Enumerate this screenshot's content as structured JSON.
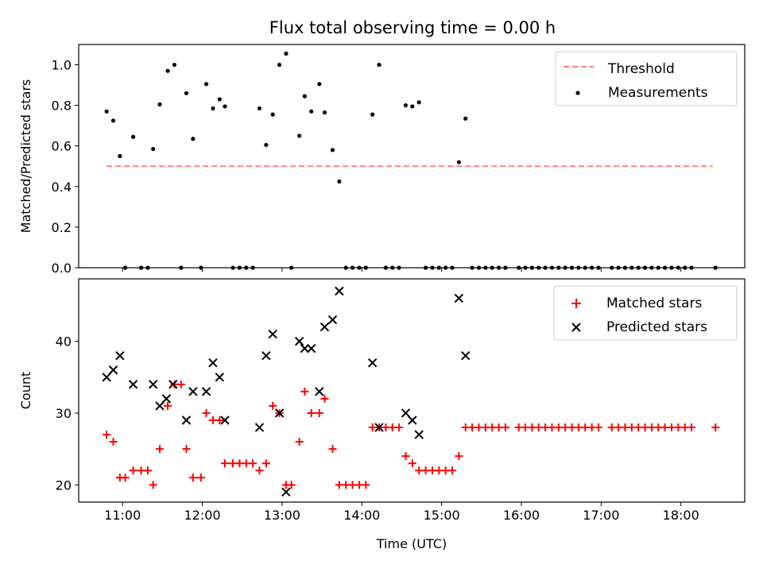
{
  "chart_data": [
    {
      "type": "scatter",
      "title": "Flux total observing time = 0.00 h",
      "xlabel": "",
      "ylabel": "Matched/Predicted stars",
      "xlim": [
        "10:27",
        "18:48"
      ],
      "ylim": [
        0,
        1.1
      ],
      "yticks": [
        0.0,
        0.2,
        0.4,
        0.6,
        0.8,
        1.0
      ],
      "ytick_labels": [
        "0.0",
        "0.2",
        "0.4",
        "0.6",
        "0.8",
        "1.0"
      ],
      "x_tick_labels_visible": false,
      "grid": false,
      "legend": "top-right",
      "series": [
        {
          "name": "Threshold",
          "kind": "dashed-line",
          "color": "#ff7f7f",
          "x": [
            "10:48",
            "18:24"
          ],
          "y": [
            0.5,
            0.5
          ]
        },
        {
          "name": "Measurements",
          "kind": "points",
          "color": "#000000",
          "x": [
            "10:48",
            "10:53",
            "10:58",
            "11:02",
            "11:08",
            "11:14",
            "11:19",
            "11:23",
            "11:28",
            "11:34",
            "11:39",
            "11:44",
            "11:48",
            "11:53",
            "11:59",
            "12:03",
            "12:08",
            "12:13",
            "12:17",
            "12:23",
            "12:28",
            "12:33",
            "12:38",
            "12:43",
            "12:48",
            "12:53",
            "12:58",
            "13:03",
            "13:07",
            "13:13",
            "13:17",
            "13:22",
            "13:28",
            "13:32",
            "13:38",
            "13:43",
            "13:48",
            "13:53",
            "13:58",
            "14:03",
            "14:08",
            "14:13",
            "14:18",
            "14:23",
            "14:28",
            "14:33",
            "14:38",
            "14:43",
            "14:48",
            "14:53",
            "14:58",
            "15:03",
            "15:08",
            "15:13",
            "15:18",
            "15:23",
            "15:28",
            "15:33",
            "15:38",
            "15:43",
            "15:48",
            "15:58",
            "16:03",
            "16:08",
            "16:13",
            "16:18",
            "16:23",
            "16:28",
            "16:33",
            "16:38",
            "16:43",
            "16:48",
            "16:53",
            "16:58",
            "17:08",
            "17:13",
            "17:18",
            "17:23",
            "17:28",
            "17:33",
            "17:38",
            "17:43",
            "17:48",
            "17:53",
            "17:58",
            "18:03",
            "18:08",
            "18:26"
          ],
          "y": [
            0.77,
            0.725,
            0.55,
            0.0,
            0.645,
            0.0,
            0.0,
            0.585,
            0.805,
            0.97,
            1.0,
            0.0,
            0.86,
            0.635,
            0.0,
            0.905,
            0.785,
            0.83,
            0.795,
            0.0,
            0.0,
            0.0,
            0.0,
            0.785,
            0.605,
            0.755,
            1.0,
            1.055,
            0.0,
            0.65,
            0.845,
            0.77,
            0.905,
            0.765,
            0.58,
            0.425,
            0.0,
            0.0,
            0.0,
            0.0,
            0.755,
            1.0,
            0.0,
            0.0,
            0.0,
            0.8,
            0.795,
            0.815,
            0.0,
            0.0,
            0.0,
            0.0,
            0.0,
            0.52,
            0.735,
            0.0,
            0.0,
            0.0,
            0.0,
            0.0,
            0.0,
            0.0,
            0.0,
            0.0,
            0.0,
            0.0,
            0.0,
            0.0,
            0.0,
            0.0,
            0.0,
            0.0,
            0.0,
            0.0,
            0.0,
            0.0,
            0.0,
            0.0,
            0.0,
            0.0,
            0.0,
            0.0,
            0.0,
            0.0,
            0.0,
            0.0,
            0.0,
            0.0
          ]
        }
      ]
    },
    {
      "type": "scatter",
      "title": "",
      "xlabel": "Time (UTC)",
      "ylabel": "Count",
      "xlim": [
        "10:27",
        "18:48"
      ],
      "ylim": [
        17.6,
        48.7
      ],
      "yticks": [
        20,
        30,
        40
      ],
      "ytick_labels": [
        "20",
        "30",
        "40"
      ],
      "xticks": [
        "11:00",
        "12:00",
        "13:00",
        "14:00",
        "15:00",
        "16:00",
        "17:00",
        "18:00"
      ],
      "xtick_labels": [
        "11:00",
        "12:00",
        "13:00",
        "14:00",
        "15:00",
        "16:00",
        "17:00",
        "18:00"
      ],
      "grid": false,
      "legend": "top-right",
      "series": [
        {
          "name": "Matched stars",
          "kind": "plus",
          "color": "#ff0000",
          "x": [
            "10:48",
            "10:53",
            "10:58",
            "11:02",
            "11:08",
            "11:14",
            "11:19",
            "11:23",
            "11:28",
            "11:34",
            "11:39",
            "11:44",
            "11:48",
            "11:53",
            "11:59",
            "12:03",
            "12:08",
            "12:13",
            "12:17",
            "12:23",
            "12:28",
            "12:33",
            "12:38",
            "12:43",
            "12:48",
            "12:53",
            "12:58",
            "13:03",
            "13:07",
            "13:13",
            "13:17",
            "13:22",
            "13:28",
            "13:32",
            "13:38",
            "13:43",
            "13:48",
            "13:53",
            "13:58",
            "14:03",
            "14:08",
            "14:13",
            "14:18",
            "14:23",
            "14:28",
            "14:33",
            "14:38",
            "14:43",
            "14:48",
            "14:53",
            "14:58",
            "15:03",
            "15:08",
            "15:13",
            "15:18",
            "15:23",
            "15:28",
            "15:33",
            "15:38",
            "15:43",
            "15:48",
            "15:58",
            "16:03",
            "16:08",
            "16:13",
            "16:18",
            "16:23",
            "16:28",
            "16:33",
            "16:38",
            "16:43",
            "16:48",
            "16:53",
            "16:58",
            "17:08",
            "17:13",
            "17:18",
            "17:23",
            "17:28",
            "17:33",
            "17:38",
            "17:43",
            "17:48",
            "17:53",
            "17:58",
            "18:03",
            "18:08",
            "18:26"
          ],
          "y": [
            27,
            26,
            21,
            21,
            22,
            22,
            22,
            20,
            25,
            31,
            34,
            34,
            25,
            21,
            21,
            30,
            29,
            29,
            23,
            23,
            23,
            23,
            23,
            22,
            23,
            31,
            30,
            20,
            20,
            26,
            33,
            30,
            30,
            32,
            25,
            20,
            20,
            20,
            20,
            20,
            28,
            28,
            28,
            28,
            28,
            24,
            23,
            22,
            22,
            22,
            22,
            22,
            22,
            24,
            28,
            28,
            28,
            28,
            28,
            28,
            28,
            28,
            28,
            28,
            28,
            28,
            28,
            28,
            28,
            28,
            28,
            28,
            28,
            28,
            28,
            28,
            28,
            28,
            28,
            28,
            28,
            28,
            28,
            28,
            28,
            28,
            28,
            28
          ]
        },
        {
          "name": "Predicted stars",
          "kind": "x",
          "color": "#000000",
          "x": [
            "10:48",
            "10:53",
            "10:58",
            "11:08",
            "11:23",
            "11:28",
            "11:33",
            "11:38",
            "11:48",
            "11:53",
            "12:03",
            "12:08",
            "12:13",
            "12:17",
            "12:43",
            "12:48",
            "12:53",
            "12:58",
            "13:03",
            "13:13",
            "13:17",
            "13:22",
            "13:28",
            "13:32",
            "13:38",
            "13:43",
            "14:08",
            "14:13",
            "14:33",
            "14:38",
            "14:43",
            "15:13",
            "15:18"
          ],
          "y": [
            35,
            36,
            38,
            34,
            34,
            31,
            32,
            34,
            29,
            33,
            33,
            37,
            35,
            29,
            28,
            38,
            41,
            30,
            19,
            40,
            39,
            39,
            33,
            42,
            43,
            47,
            37,
            28,
            30,
            29,
            27,
            46,
            38
          ]
        }
      ]
    }
  ]
}
